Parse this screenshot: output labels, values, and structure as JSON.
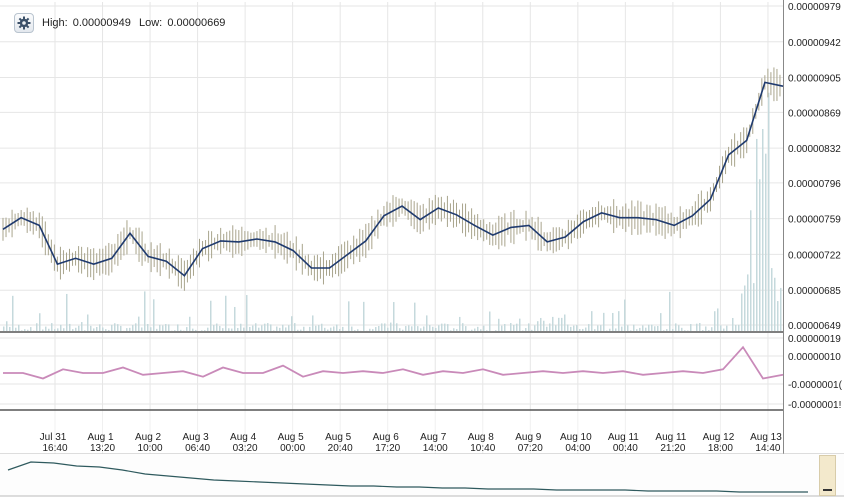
{
  "header": {
    "high_label": "High:",
    "high_value": "0.00000949",
    "low_label": "Low:",
    "low_value": "0.00000669"
  },
  "settings_icon": "gear-icon",
  "colors": {
    "price_line": "#1f3a6e",
    "price_wick": "#a8a48c",
    "osc_line": "#c98ab9",
    "nav_line": "#2f5a5e",
    "volume": "#c5d9dc",
    "grid": "#e6e6e6"
  },
  "chart_data": [
    {
      "type": "line",
      "title": "",
      "y_axis_labels": [
        "0.00000979",
        "0.00000942",
        "0.00000905",
        "0.00000869",
        "0.00000832",
        "0.00000796",
        "0.00000759",
        "0.00000722",
        "0.00000685",
        "0.00000649"
      ],
      "ylim": [
        6.49e-06,
        9.79e-06
      ],
      "x_labels": [
        {
          "date": "Jul 31",
          "time": "16:40"
        },
        {
          "date": "Aug 1",
          "time": "13:20"
        },
        {
          "date": "Aug 2",
          "time": "10:00"
        },
        {
          "date": "Aug 3",
          "time": "06:40"
        },
        {
          "date": "Aug 4",
          "time": "03:20"
        },
        {
          "date": "Aug 5",
          "time": "00:00"
        },
        {
          "date": "Aug 5",
          "time": "20:40"
        },
        {
          "date": "Aug 6",
          "time": "17:20"
        },
        {
          "date": "Aug 7",
          "time": "14:00"
        },
        {
          "date": "Aug 8",
          "time": "10:40"
        },
        {
          "date": "Aug 9",
          "time": "07:20"
        },
        {
          "date": "Aug 10",
          "time": "04:00"
        },
        {
          "date": "Aug 11",
          "time": "00:40"
        },
        {
          "date": "Aug 11",
          "time": "21:20"
        },
        {
          "date": "Aug 12",
          "time": "18:00"
        },
        {
          "date": "Aug 13",
          "time": "14:40"
        }
      ],
      "series": [
        {
          "values": [
            7.48e-06,
            7.6e-06,
            7.52e-06,
            7.12e-06,
            7.18e-06,
            7.12e-06,
            7.18e-06,
            7.44e-06,
            7.2e-06,
            7.15e-06,
            7e-06,
            7.28e-06,
            7.36e-06,
            7.35e-06,
            7.38e-06,
            7.35e-06,
            7.26e-06,
            7.08e-06,
            7.08e-06,
            7.22e-06,
            7.36e-06,
            7.62e-06,
            7.72e-06,
            7.58e-06,
            7.7e-06,
            7.63e-06,
            7.52e-06,
            7.42e-06,
            7.5e-06,
            7.52e-06,
            7.35e-06,
            7.4e-06,
            7.56e-06,
            7.65e-06,
            7.6e-06,
            7.6e-06,
            7.58e-06,
            7.52e-06,
            7.62e-06,
            7.79e-06,
            8.25e-06,
            8.4e-06,
            9e-06,
            8.96e-06
          ]
        }
      ]
    },
    {
      "type": "line",
      "title": "",
      "y_axis_labels": [
        "0.00000019",
        "0.00000010",
        "-0.0000001(",
        "-0.0000001!"
      ],
      "series": [
        {
          "values": [
            0,
            0,
            -3e-08,
            2e-08,
            0,
            0,
            3e-08,
            -1e-08,
            0,
            1e-08,
            -2e-08,
            3e-08,
            0,
            0,
            4e-08,
            -2e-08,
            1e-08,
            0,
            1e-08,
            0,
            2e-08,
            -1e-08,
            1e-08,
            0,
            2e-08,
            -1e-08,
            0,
            1e-08,
            0,
            1e-08,
            0,
            1e-08,
            -1e-08,
            0,
            1e-08,
            0,
            2e-08,
            1.4e-07,
            -3e-08,
            -1e-08
          ]
        }
      ]
    }
  ]
}
